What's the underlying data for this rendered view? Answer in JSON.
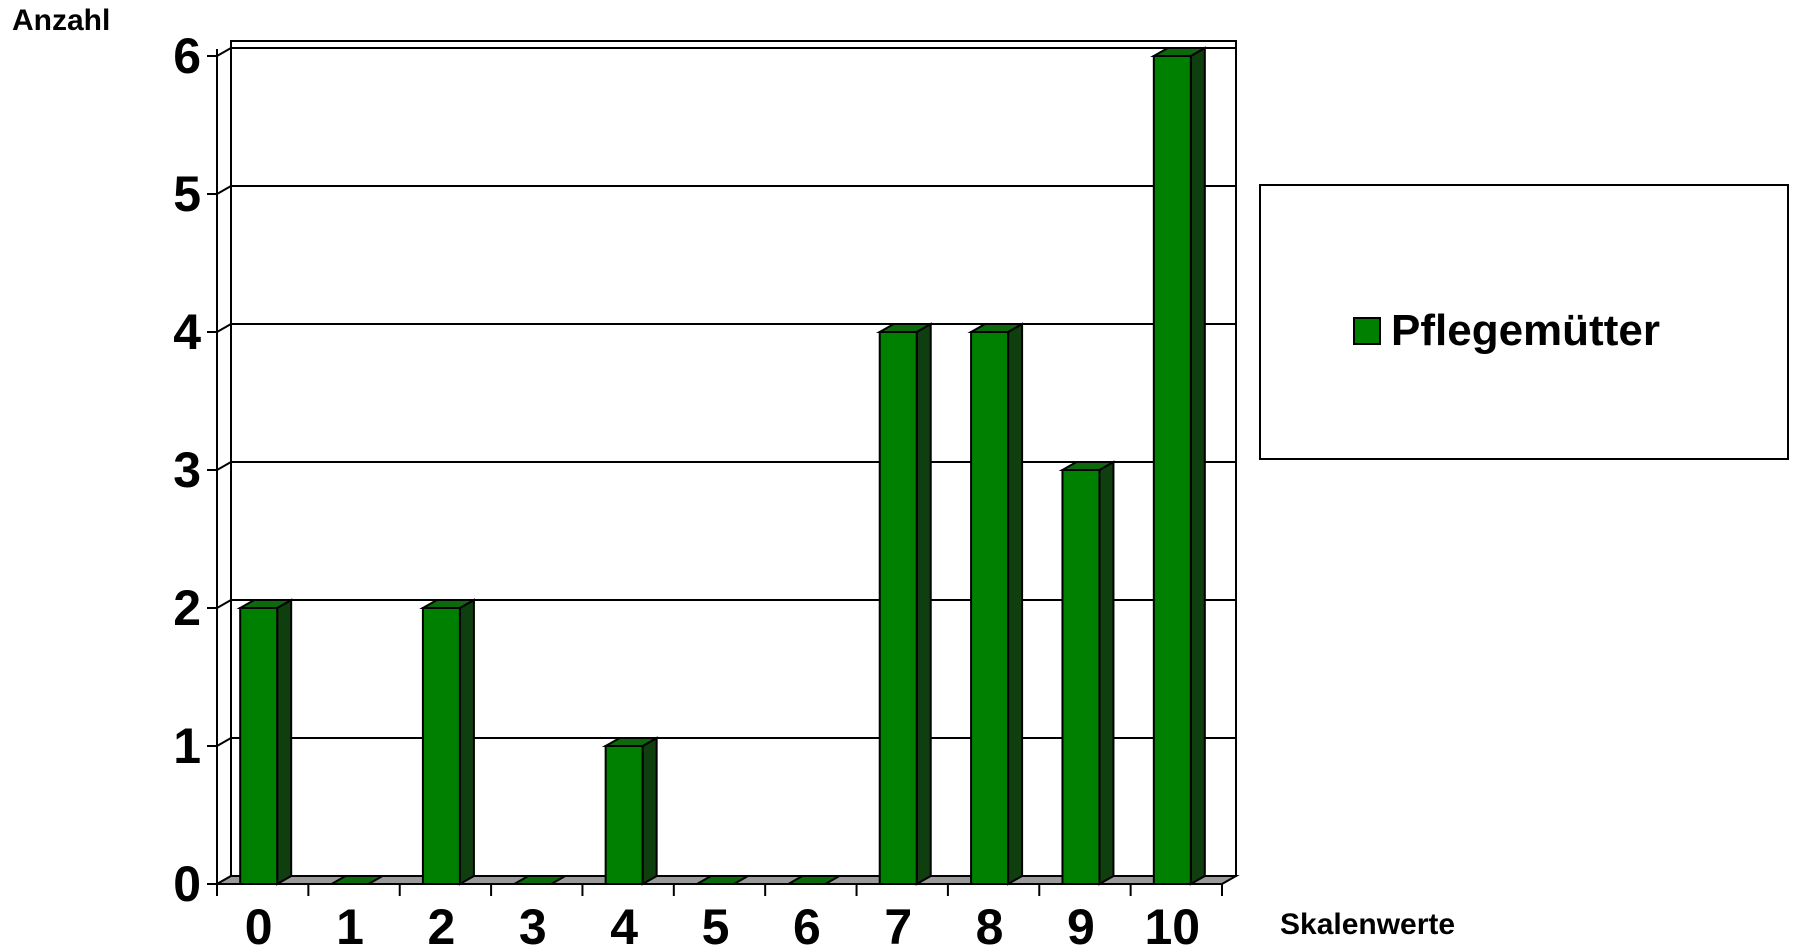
{
  "chart_data": {
    "type": "bar",
    "xlabel": "Skalenwerte",
    "ylabel": "Anzahl",
    "categories": [
      "0",
      "1",
      "2",
      "3",
      "4",
      "5",
      "6",
      "7",
      "8",
      "9",
      "10"
    ],
    "series": [
      {
        "name": "Pflegemütter",
        "values": [
          2,
          0,
          2,
          0,
          1,
          0,
          0,
          4,
          4,
          3,
          6
        ]
      }
    ],
    "ylim": [
      0,
      6
    ],
    "yticks": [
      "0",
      "1",
      "2",
      "3",
      "4",
      "5",
      "6"
    ],
    "grid": true,
    "legend_position": "right",
    "colors": {
      "bar_front": "#008000",
      "bar_top": "#0c6a0c",
      "bar_side": "#0f3f0f",
      "floor": "#9a9a9a"
    }
  }
}
